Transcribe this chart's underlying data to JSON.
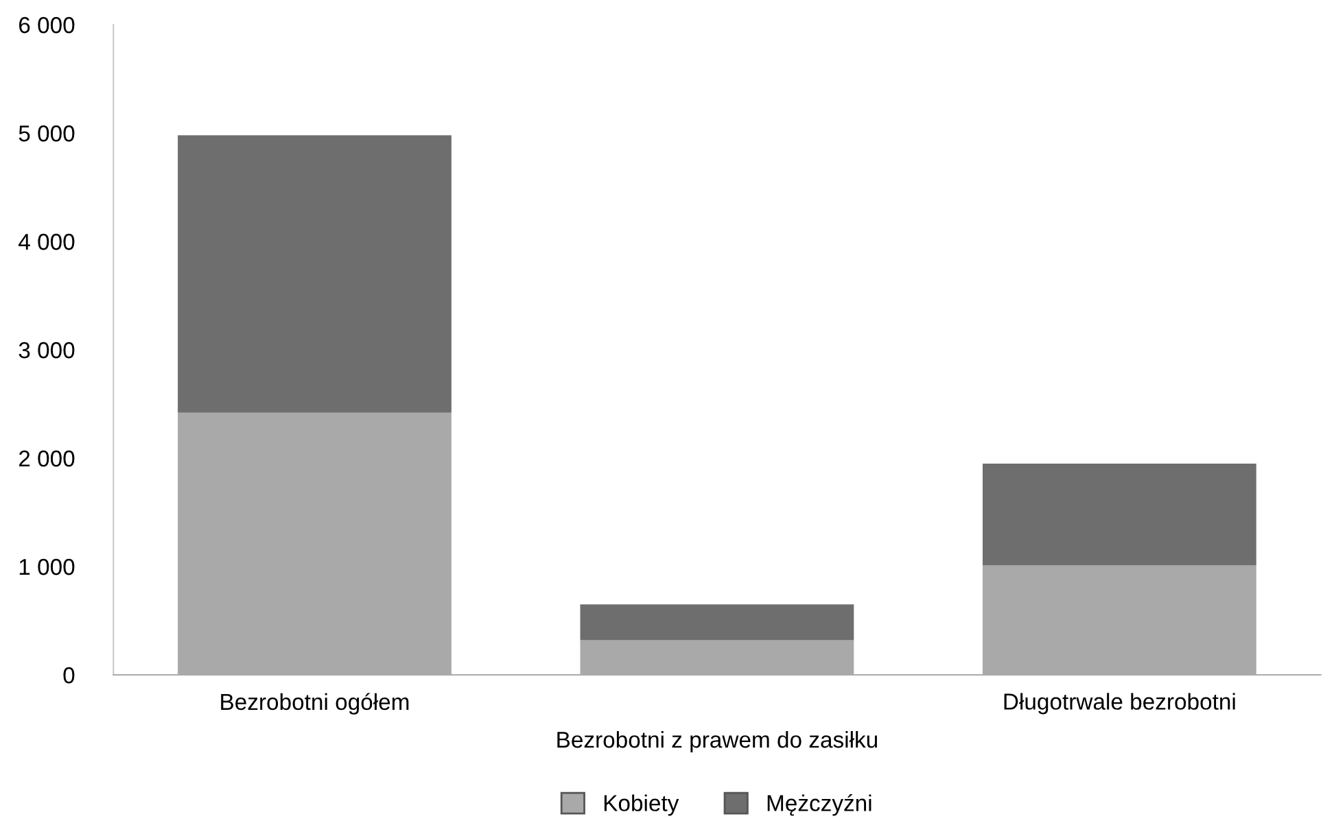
{
  "chart_data": {
    "type": "bar",
    "stacked": true,
    "categories": [
      "Bezrobotni ogółem",
      "Bezrobotni z prawem do zasiłku",
      "Długotrwale bezrobotni"
    ],
    "series": [
      {
        "name": "Kobiety",
        "color": "#a9a9a9",
        "values": [
          2420,
          320,
          1010
        ]
      },
      {
        "name": "Mężczyźni",
        "color": "#6e6e6e",
        "values": [
          2560,
          330,
          940
        ]
      }
    ],
    "ylim": [
      0,
      6000
    ],
    "yticks": [
      {
        "value": 0,
        "label": "0"
      },
      {
        "value": 1000,
        "label": "1 000"
      },
      {
        "value": 2000,
        "label": "2 000"
      },
      {
        "value": 3000,
        "label": "3 000"
      },
      {
        "value": 4000,
        "label": "4 000"
      },
      {
        "value": 5000,
        "label": "5 000"
      },
      {
        "value": 6000,
        "label": "6 000"
      }
    ],
    "grid": false,
    "legend": "bottom"
  }
}
